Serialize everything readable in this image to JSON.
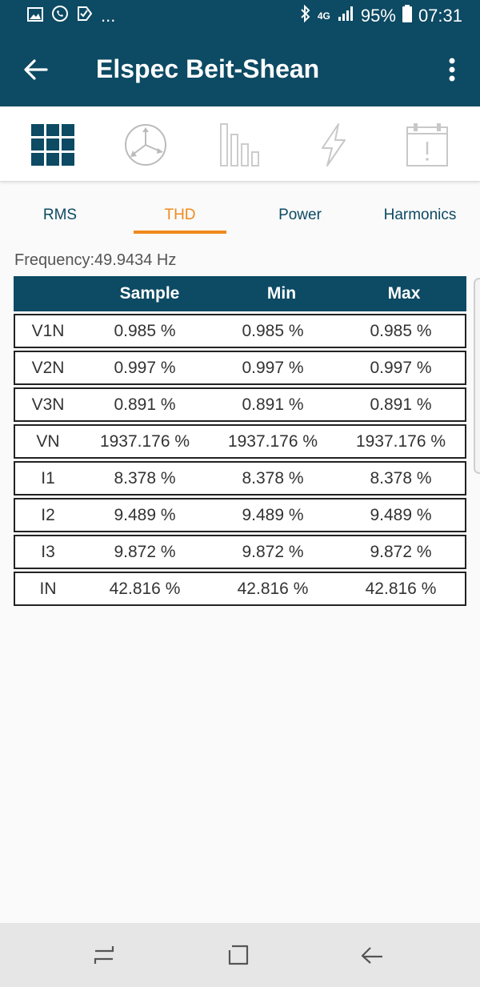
{
  "status": {
    "battery": "95%",
    "time": "07:31",
    "network": "4G",
    "notification_more": "..."
  },
  "app_bar": {
    "title": "Elspec Beit-Shean"
  },
  "icon_bar": {
    "icons": [
      "grid-icon",
      "phasor-icon",
      "bars-icon",
      "lightning-icon",
      "calendar-alert-icon"
    ]
  },
  "tabs": [
    {
      "label": "RMS"
    },
    {
      "label": "THD"
    },
    {
      "label": "Power"
    },
    {
      "label": "Harmonics"
    }
  ],
  "active_tab": "THD",
  "frequency": "Frequency:49.9434 Hz",
  "table": {
    "headers": [
      "",
      "Sample",
      "Min",
      "Max"
    ],
    "rows": [
      {
        "name": "V1N",
        "sample": "0.985 %",
        "min": "0.985 %",
        "max": "0.985 %"
      },
      {
        "name": "V2N",
        "sample": "0.997 %",
        "min": "0.997 %",
        "max": "0.997 %"
      },
      {
        "name": "V3N",
        "sample": "0.891 %",
        "min": "0.891 %",
        "max": "0.891 %"
      },
      {
        "name": "VN",
        "sample": "1937.176 %",
        "min": "1937.176 %",
        "max": "1937.176 %"
      },
      {
        "name": "I1",
        "sample": "8.378 %",
        "min": "8.378 %",
        "max": "8.378 %"
      },
      {
        "name": "I2",
        "sample": "9.489 %",
        "min": "9.489 %",
        "max": "9.489 %"
      },
      {
        "name": "I3",
        "sample": "9.872 %",
        "min": "9.872 %",
        "max": "9.872 %"
      },
      {
        "name": "IN",
        "sample": "42.816 %",
        "min": "42.816 %",
        "max": "42.816 %"
      }
    ]
  },
  "colors": {
    "primary": "#0d4a63",
    "accent": "#f08a1c"
  }
}
